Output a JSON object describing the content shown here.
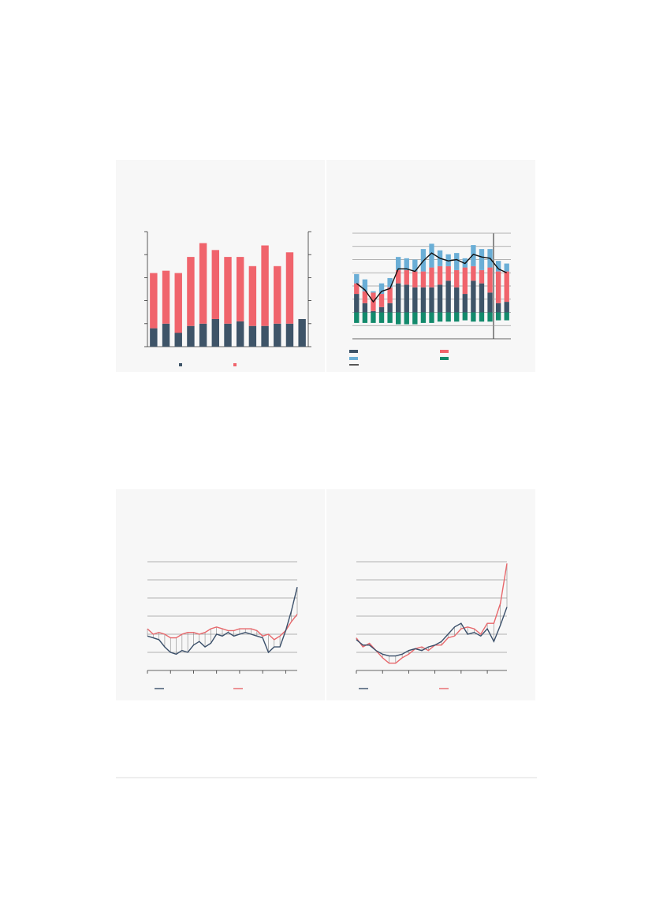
{
  "chart_data": [
    {
      "type": "bar",
      "stacked": true,
      "grid": false,
      "ylim": [
        0,
        5
      ],
      "yticks": [
        0,
        1,
        2,
        3,
        4,
        5
      ],
      "y2lim": [
        0,
        5
      ],
      "y2ticks": [
        0,
        1,
        2,
        3,
        4,
        5
      ],
      "series": [
        {
          "color": "#3e5468",
          "values": [
            0.8,
            1.0,
            0.6,
            0.9,
            1.0,
            1.2,
            1.0,
            1.1,
            0.9,
            0.9,
            1.0,
            1.0,
            1.2
          ]
        },
        {
          "color": "#f0646c",
          "values": [
            2.4,
            2.3,
            2.6,
            3.0,
            3.5,
            3.0,
            2.9,
            2.8,
            2.6,
            3.5,
            2.5,
            3.1,
            null
          ]
        }
      ]
    },
    {
      "type": "bar",
      "stacked": true,
      "grid": true,
      "ylim": [
        -2,
        6
      ],
      "yticks": [
        -1,
        0,
        1,
        2,
        3,
        4,
        5,
        6
      ],
      "series": [
        {
          "color": "#3e5468",
          "values": [
            1.4,
            0.7,
            0.1,
            0.4,
            0.7,
            2.2,
            2.1,
            1.9,
            1.9,
            1.9,
            2.1,
            2.4,
            1.9,
            1.4,
            2.4,
            2.2,
            1.5,
            0.7,
            0.8
          ]
        },
        {
          "color": "#f0646c",
          "values": [
            0.8,
            0.9,
            1.4,
            1.0,
            1.2,
            1.0,
            1.1,
            1.2,
            1.2,
            1.5,
            1.4,
            1.1,
            1.3,
            2.0,
            1.1,
            1.0,
            1.9,
            2.4,
            2.3
          ]
        },
        {
          "color": "#6aaed6",
          "values": [
            0.7,
            0.9,
            0.1,
            0.8,
            0.7,
            1.0,
            0.9,
            0.9,
            1.7,
            1.8,
            1.2,
            0.9,
            1.3,
            0.7,
            1.6,
            1.6,
            1.4,
            0.8,
            0.6
          ]
        },
        {
          "color": "#138a6c",
          "values": [
            -0.8,
            -0.8,
            -0.8,
            -0.8,
            -0.8,
            -0.9,
            -0.9,
            -0.9,
            -0.8,
            -0.8,
            -0.7,
            -0.7,
            -0.7,
            -0.6,
            -0.7,
            -0.7,
            -0.7,
            -0.6,
            -0.6
          ]
        },
        {
          "color": "#111111",
          "type": "line",
          "values": [
            2.2,
            1.7,
            0.8,
            1.6,
            1.8,
            3.3,
            3.3,
            3.1,
            3.9,
            4.5,
            4.1,
            3.9,
            4.0,
            3.7,
            4.4,
            4.2,
            4.1,
            3.3,
            3.0
          ]
        }
      ]
    },
    {
      "type": "line",
      "grid": true,
      "x": [
        0,
        1,
        2,
        3,
        4,
        5,
        6,
        7,
        8,
        9,
        10,
        11,
        12,
        13,
        14,
        15,
        16,
        17,
        18,
        19,
        20,
        21,
        22,
        23,
        24,
        25,
        26
      ],
      "xlim": [
        0,
        26
      ],
      "xticks": [
        0,
        4,
        8,
        12,
        16,
        20,
        24
      ],
      "ylim": [
        -1,
        5
      ],
      "yticks": [
        0,
        1,
        2,
        3,
        4,
        5
      ],
      "series": [
        {
          "color": "#3a4f6a",
          "values": [
            0.9,
            0.8,
            0.7,
            0.3,
            0,
            -0.1,
            0.1,
            0,
            0.4,
            0.6,
            0.3,
            0.5,
            1.0,
            0.9,
            1.1,
            0.9,
            1.0,
            1.1,
            1.0,
            0.9,
            0.8,
            0,
            0.3,
            0.3,
            1.2,
            2.3,
            3.6
          ]
        },
        {
          "color": "#e8676b",
          "values": [
            1.3,
            1.0,
            1.1,
            1.0,
            0.8,
            0.8,
            1.0,
            1.1,
            1.1,
            1.0,
            1.1,
            1.3,
            1.4,
            1.3,
            1.2,
            1.2,
            1.3,
            1.3,
            1.3,
            1.2,
            0.9,
            1.0,
            0.7,
            0.9,
            1.2,
            1.7,
            2.1
          ]
        }
      ]
    },
    {
      "type": "line",
      "grid": true,
      "x": [
        0,
        1,
        2,
        3,
        4,
        5,
        6,
        7,
        8,
        9,
        10,
        11,
        12,
        13,
        14,
        15,
        16,
        17,
        18,
        19,
        20,
        21,
        22,
        23
      ],
      "xlim": [
        0,
        23
      ],
      "xticks": [
        0,
        4,
        8,
        12,
        16,
        20
      ],
      "ylim": [
        -1,
        5
      ],
      "yticks": [
        0,
        1,
        2,
        3,
        4,
        5
      ],
      "series": [
        {
          "color": "#3a4f6a",
          "values": [
            0.7,
            0.4,
            0.4,
            0.1,
            -0.1,
            -0.2,
            -0.2,
            -0.1,
            0.1,
            0.2,
            0.1,
            0.3,
            0.4,
            0.6,
            1.0,
            1.4,
            1.6,
            1.0,
            1.1,
            0.9,
            1.3,
            0.6,
            1.5,
            2.5
          ]
        },
        {
          "color": "#e8676b",
          "values": [
            0.8,
            0.3,
            0.5,
            0.1,
            -0.3,
            -0.6,
            -0.6,
            -0.3,
            -0.1,
            0.2,
            0.3,
            0.1,
            0.4,
            0.4,
            0.8,
            0.9,
            1.3,
            1.4,
            1.3,
            1.0,
            1.6,
            1.6,
            2.7,
            4.9
          ]
        }
      ]
    }
  ]
}
